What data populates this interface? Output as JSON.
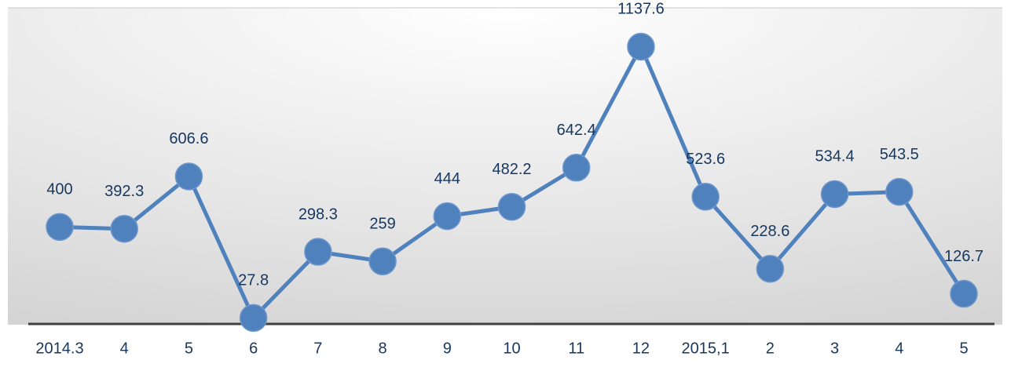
{
  "chart_data": {
    "type": "line",
    "categories": [
      "2014.3",
      "4",
      "5",
      "6",
      "7",
      "8",
      "9",
      "10",
      "11",
      "12",
      "2015,1",
      "2",
      "3",
      "4",
      "5"
    ],
    "values": [
      400,
      392.3,
      606.6,
      27.8,
      298.3,
      259,
      444,
      482.2,
      642.4,
      1137.6,
      523.6,
      228.6,
      534.4,
      543.5,
      126.7
    ],
    "color": "#4f81bd",
    "ylim": [
      0,
      1200
    ]
  }
}
